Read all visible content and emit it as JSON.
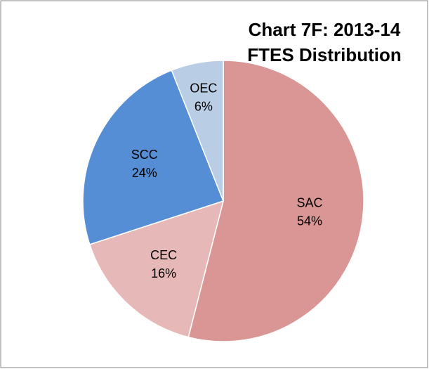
{
  "chart_data": {
    "type": "pie",
    "title": [
      "Chart 7F:  2013-14",
      "FTES Distribution"
    ],
    "categories": [
      "SAC",
      "CEC",
      "SCC",
      "OEC"
    ],
    "values": [
      54,
      16,
      24,
      6
    ],
    "value_labels": [
      "54%",
      "16%",
      "24%",
      "6%"
    ],
    "colors": [
      "#d99694",
      "#e6b9b8",
      "#558ed5",
      "#b9cde5"
    ]
  }
}
